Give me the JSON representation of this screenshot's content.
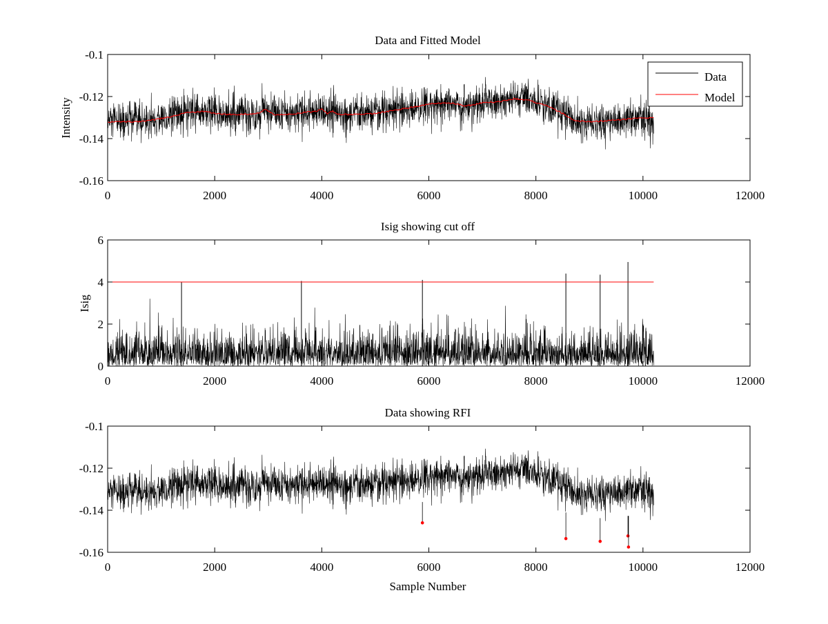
{
  "figure": {
    "xlabel": "Sample Number",
    "colors": {
      "data": "#000000",
      "model": "#ff0000",
      "cutoff": "#ff0000",
      "rfi": "#ff0000"
    }
  },
  "chart_data": [
    {
      "type": "line",
      "title": "Data and Fitted Model",
      "xlabel": "",
      "ylabel": "Intensity",
      "xlim": [
        0,
        12000
      ],
      "ylim": [
        -0.16,
        -0.1
      ],
      "xticks": [
        0,
        2000,
        4000,
        6000,
        8000,
        10000,
        12000
      ],
      "yticks": [
        -0.16,
        -0.14,
        -0.12,
        -0.1
      ],
      "xtick_labels": [
        "0",
        "2000",
        "4000",
        "6000",
        "8000",
        "10000",
        "12000"
      ],
      "ytick_labels": [
        "-0.16",
        "-0.14",
        "-0.12",
        "-0.1"
      ],
      "legend": {
        "position": "top-right",
        "entries": [
          "Data",
          "Model"
        ]
      },
      "series": [
        {
          "name": "Data",
          "kind": "noisy",
          "n_samples": 10200,
          "noise_sd": 0.0045,
          "x_end": 10200
        },
        {
          "name": "Model",
          "x": [
            0,
            500,
            900,
            1200,
            1400,
            1600,
            1800,
            2000,
            2200,
            2500,
            2800,
            2950,
            3100,
            3400,
            3700,
            3900,
            4000,
            4100,
            4200,
            4300,
            4600,
            5000,
            5500,
            6000,
            6400,
            6700,
            7000,
            7300,
            7600,
            7900,
            8200,
            8500,
            8700,
            9000,
            9400,
            9800,
            10200
          ],
          "y": [
            -0.132,
            -0.132,
            -0.131,
            -0.1295,
            -0.128,
            -0.1275,
            -0.127,
            -0.128,
            -0.1285,
            -0.1285,
            -0.128,
            -0.126,
            -0.1285,
            -0.1285,
            -0.1275,
            -0.127,
            -0.126,
            -0.128,
            -0.127,
            -0.1285,
            -0.1285,
            -0.128,
            -0.126,
            -0.1235,
            -0.123,
            -0.1245,
            -0.123,
            -0.1225,
            -0.121,
            -0.122,
            -0.1245,
            -0.128,
            -0.1315,
            -0.132,
            -0.1315,
            -0.1305,
            -0.13
          ]
        }
      ]
    },
    {
      "type": "line",
      "title": "Isig showing cut off",
      "xlabel": "",
      "ylabel": "Isig",
      "xlim": [
        0,
        12000
      ],
      "ylim": [
        0,
        6
      ],
      "xticks": [
        0,
        2000,
        4000,
        6000,
        8000,
        10000,
        12000
      ],
      "yticks": [
        0,
        2,
        4,
        6
      ],
      "xtick_labels": [
        "0",
        "2000",
        "4000",
        "6000",
        "8000",
        "10000",
        "12000"
      ],
      "ytick_labels": [
        "0",
        "2",
        "4",
        "6"
      ],
      "series": [
        {
          "name": "Isig",
          "kind": "abs-noise",
          "n_samples": 10200,
          "x_end": 10200
        },
        {
          "name": "Cutoff",
          "x": [
            0,
            10200
          ],
          "y": [
            4,
            4
          ]
        }
      ],
      "spikes": [
        {
          "x": 8560,
          "y": 4.4
        },
        {
          "x": 9200,
          "y": 4.35
        },
        {
          "x": 9720,
          "y": 4.95
        },
        {
          "x": 5880,
          "y": 4.1
        },
        {
          "x": 3620,
          "y": 4.05
        },
        {
          "x": 1380,
          "y": 4.0
        }
      ]
    },
    {
      "type": "line",
      "title": "Data showing RFI",
      "xlabel": "Sample Number",
      "ylabel": "",
      "xlim": [
        0,
        12000
      ],
      "ylim": [
        -0.16,
        -0.1
      ],
      "xticks": [
        0,
        2000,
        4000,
        6000,
        8000,
        10000,
        12000
      ],
      "yticks": [
        -0.16,
        -0.14,
        -0.12,
        -0.1
      ],
      "xtick_labels": [
        "0",
        "2000",
        "4000",
        "6000",
        "8000",
        "10000",
        "12000"
      ],
      "ytick_labels": [
        "-0.16",
        "-0.14",
        "-0.12",
        "-0.1"
      ],
      "series": [
        {
          "name": "Data",
          "kind": "noisy",
          "n_samples": 10200,
          "noise_sd": 0.0045,
          "x_end": 10200
        }
      ],
      "rfi_points": [
        {
          "x": 5880,
          "y": -0.146
        },
        {
          "x": 8560,
          "y": -0.1535
        },
        {
          "x": 9200,
          "y": -0.1548
        },
        {
          "x": 9720,
          "y": -0.1522
        },
        {
          "x": 9730,
          "y": -0.1575
        }
      ]
    }
  ]
}
